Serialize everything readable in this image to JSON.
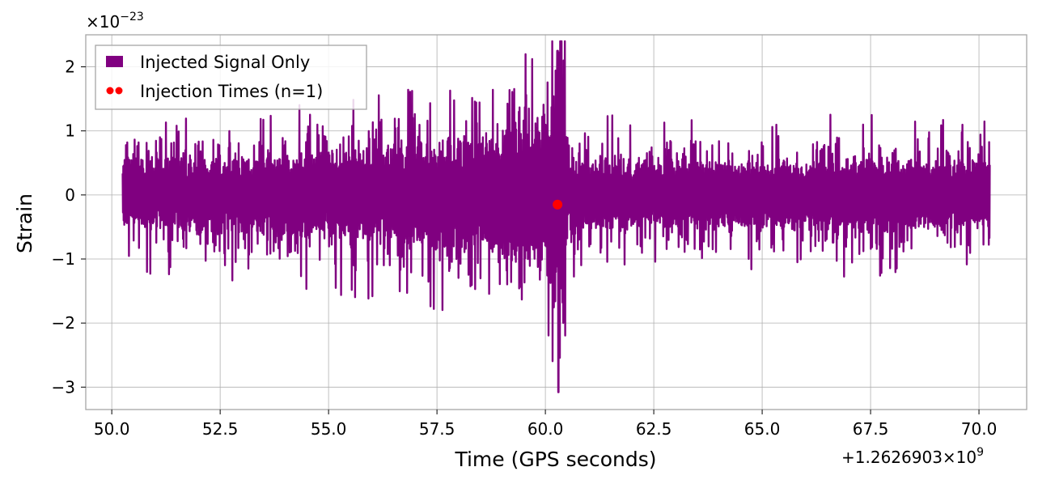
{
  "chart_data": {
    "type": "line",
    "title": "",
    "xlabel": "Time (GPS seconds)",
    "ylabel": "Strain",
    "x_offset_label": "+1.2626903×10",
    "x_offset_exponent": "9",
    "y_scale_label": "×10",
    "y_scale_exponent": "−23",
    "xlim": [
      49.4,
      71.1
    ],
    "ylim": [
      -3.35,
      2.5
    ],
    "x_ticks": [
      50.0,
      52.5,
      55.0,
      57.5,
      60.0,
      62.5,
      65.0,
      67.5,
      70.0
    ],
    "x_tick_labels": [
      "50.0",
      "52.5",
      "55.0",
      "57.5",
      "60.0",
      "62.5",
      "65.0",
      "67.5",
      "70.0"
    ],
    "y_ticks": [
      2,
      1,
      0,
      -1,
      -2,
      -3
    ],
    "y_tick_labels": [
      "2",
      "1",
      "0",
      "−1",
      "−2",
      "−3"
    ],
    "grid": true,
    "legend_position": "top-left",
    "series": [
      {
        "name": "Injected Signal Only",
        "kind": "line",
        "color": "#800080",
        "x_range": [
          50.25,
          70.25
        ],
        "typical_amplitude_envelope": [
          [
            50.25,
            0.55
          ],
          [
            52.5,
            0.6
          ],
          [
            55.0,
            0.7
          ],
          [
            57.5,
            0.85
          ],
          [
            59.5,
            1.1
          ],
          [
            60.1,
            1.5
          ],
          [
            60.28,
            2.25
          ],
          [
            60.3,
            -3.08
          ],
          [
            60.5,
            0.6
          ],
          [
            62.5,
            0.55
          ],
          [
            65.0,
            0.55
          ],
          [
            67.5,
            0.6
          ],
          [
            70.25,
            0.55
          ]
        ]
      },
      {
        "name": "Injection Times (n=1)",
        "kind": "scatter",
        "color": "#ff0000",
        "points": [
          [
            60.28,
            -0.15
          ]
        ]
      }
    ]
  }
}
